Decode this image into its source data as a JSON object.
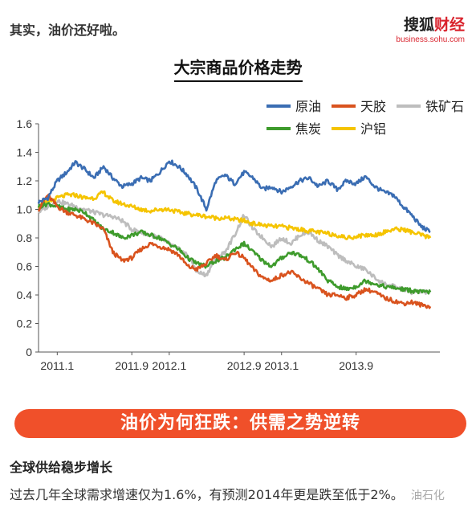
{
  "header": {
    "intro_text": "其实，油价还好啦。",
    "brand_name_a": "搜狐",
    "brand_name_b": "财经",
    "brand_url": "business.sohu.com"
  },
  "chart_data": {
    "type": "line",
    "title": "大宗商品价格走势",
    "xlabel": "",
    "ylabel": "",
    "x_start": "2010-11",
    "x_end": "2014-06",
    "x_ticks": [
      {
        "date": "2011-01",
        "label": "2011.1"
      },
      {
        "date": "2011-09",
        "label": "2011.9"
      },
      {
        "date": "2012-01",
        "label": "2012.1"
      },
      {
        "date": "2012-09",
        "label": "2012.9"
      },
      {
        "date": "2013-01",
        "label": "2013.1"
      },
      {
        "date": "2013-09",
        "label": "2013.9"
      }
    ],
    "ylim": [
      0,
      1.6
    ],
    "y_ticks": [
      0,
      0.2,
      0.4,
      0.6,
      0.8,
      1.0,
      1.2,
      1.4,
      1.6
    ],
    "y_tick_labels": [
      "0",
      "0.2",
      "0.4",
      "0.6",
      "0.8",
      "1.0",
      "1.2",
      "1.4",
      "1.6"
    ],
    "grid": false,
    "legend_position": "top-right",
    "series": [
      {
        "name": "原油",
        "color": "#3a6db3",
        "points": [
          [
            "2010-11-01",
            1.05
          ],
          [
            "2010-12-01",
            1.08
          ],
          [
            "2011-01-01",
            1.2
          ],
          [
            "2011-02-01",
            1.26
          ],
          [
            "2011-03-01",
            1.33
          ],
          [
            "2011-04-01",
            1.28
          ],
          [
            "2011-05-01",
            1.22
          ],
          [
            "2011-06-01",
            1.3
          ],
          [
            "2011-07-01",
            1.22
          ],
          [
            "2011-08-01",
            1.16
          ],
          [
            "2011-09-01",
            1.18
          ],
          [
            "2011-10-01",
            1.22
          ],
          [
            "2011-11-01",
            1.2
          ],
          [
            "2011-12-01",
            1.26
          ],
          [
            "2012-01-01",
            1.34
          ],
          [
            "2012-02-01",
            1.3
          ],
          [
            "2012-03-01",
            1.24
          ],
          [
            "2012-04-01",
            1.14
          ],
          [
            "2012-05-01",
            1.0
          ],
          [
            "2012-06-01",
            1.2
          ],
          [
            "2012-07-01",
            1.24
          ],
          [
            "2012-08-01",
            1.18
          ],
          [
            "2012-09-01",
            1.26
          ],
          [
            "2012-10-01",
            1.22
          ],
          [
            "2012-11-01",
            1.14
          ],
          [
            "2012-12-01",
            1.16
          ],
          [
            "2013-01-01",
            1.12
          ],
          [
            "2013-02-01",
            1.16
          ],
          [
            "2013-03-01",
            1.2
          ],
          [
            "2013-04-01",
            1.22
          ],
          [
            "2013-05-01",
            1.16
          ],
          [
            "2013-06-01",
            1.2
          ],
          [
            "2013-07-01",
            1.14
          ],
          [
            "2013-08-01",
            1.2
          ],
          [
            "2013-09-01",
            1.18
          ],
          [
            "2013-10-01",
            1.23
          ],
          [
            "2013-11-01",
            1.16
          ],
          [
            "2013-12-01",
            1.12
          ],
          [
            "2014-01-01",
            1.1
          ],
          [
            "2014-02-01",
            1.02
          ],
          [
            "2014-03-01",
            0.96
          ],
          [
            "2014-04-01",
            0.88
          ],
          [
            "2014-05-01",
            0.84
          ]
        ]
      },
      {
        "name": "天胶",
        "color": "#d9531e",
        "points": [
          [
            "2010-11-01",
            1.0
          ],
          [
            "2010-12-01",
            1.1
          ],
          [
            "2011-01-01",
            1.02
          ],
          [
            "2011-02-01",
            0.98
          ],
          [
            "2011-03-01",
            0.96
          ],
          [
            "2011-04-01",
            0.93
          ],
          [
            "2011-05-01",
            0.9
          ],
          [
            "2011-06-01",
            0.86
          ],
          [
            "2011-07-01",
            0.7
          ],
          [
            "2011-08-01",
            0.64
          ],
          [
            "2011-09-01",
            0.66
          ],
          [
            "2011-10-01",
            0.72
          ],
          [
            "2011-11-01",
            0.76
          ],
          [
            "2011-12-01",
            0.74
          ],
          [
            "2012-01-01",
            0.72
          ],
          [
            "2012-02-01",
            0.68
          ],
          [
            "2012-03-01",
            0.6
          ],
          [
            "2012-04-01",
            0.58
          ],
          [
            "2012-05-01",
            0.62
          ],
          [
            "2012-06-01",
            0.68
          ],
          [
            "2012-07-01",
            0.64
          ],
          [
            "2012-08-01",
            0.7
          ],
          [
            "2012-09-01",
            0.66
          ],
          [
            "2012-10-01",
            0.58
          ],
          [
            "2012-11-01",
            0.52
          ],
          [
            "2012-12-01",
            0.5
          ],
          [
            "2013-01-01",
            0.54
          ],
          [
            "2013-02-01",
            0.56
          ],
          [
            "2013-03-01",
            0.52
          ],
          [
            "2013-04-01",
            0.48
          ],
          [
            "2013-05-01",
            0.44
          ],
          [
            "2013-06-01",
            0.4
          ],
          [
            "2013-07-01",
            0.4
          ],
          [
            "2013-08-01",
            0.38
          ],
          [
            "2013-09-01",
            0.4
          ],
          [
            "2013-10-01",
            0.44
          ],
          [
            "2013-11-01",
            0.42
          ],
          [
            "2013-12-01",
            0.38
          ],
          [
            "2014-01-01",
            0.36
          ],
          [
            "2014-02-01",
            0.34
          ],
          [
            "2014-03-01",
            0.35
          ],
          [
            "2014-04-01",
            0.33
          ],
          [
            "2014-05-01",
            0.32
          ]
        ]
      },
      {
        "name": "铁矿石",
        "color": "#bdbdbd",
        "points": [
          [
            "2010-11-01",
            0.98
          ],
          [
            "2010-12-01",
            1.02
          ],
          [
            "2011-01-01",
            1.06
          ],
          [
            "2011-02-01",
            1.04
          ],
          [
            "2011-03-01",
            1.02
          ],
          [
            "2011-04-01",
            1.0
          ],
          [
            "2011-05-01",
            0.98
          ],
          [
            "2011-06-01",
            0.96
          ],
          [
            "2011-07-01",
            0.95
          ],
          [
            "2011-08-01",
            0.92
          ],
          [
            "2011-09-01",
            0.86
          ],
          [
            "2011-10-01",
            0.84
          ],
          [
            "2011-11-01",
            0.82
          ],
          [
            "2011-12-01",
            0.8
          ],
          [
            "2012-01-01",
            0.76
          ],
          [
            "2012-02-01",
            0.72
          ],
          [
            "2012-03-01",
            0.68
          ],
          [
            "2012-04-01",
            0.56
          ],
          [
            "2012-05-01",
            0.54
          ],
          [
            "2012-06-01",
            0.66
          ],
          [
            "2012-07-01",
            0.7
          ],
          [
            "2012-08-01",
            0.82
          ],
          [
            "2012-09-01",
            0.96
          ],
          [
            "2012-10-01",
            0.86
          ],
          [
            "2012-11-01",
            0.8
          ],
          [
            "2012-12-01",
            0.74
          ],
          [
            "2013-01-01",
            0.8
          ],
          [
            "2013-02-01",
            0.76
          ],
          [
            "2013-03-01",
            0.82
          ],
          [
            "2013-04-01",
            0.84
          ],
          [
            "2013-05-01",
            0.78
          ],
          [
            "2013-06-01",
            0.74
          ],
          [
            "2013-07-01",
            0.68
          ],
          [
            "2013-08-01",
            0.64
          ],
          [
            "2013-09-01",
            0.6
          ],
          [
            "2013-10-01",
            0.58
          ],
          [
            "2013-11-01",
            0.52
          ],
          [
            "2013-12-01",
            0.48
          ],
          [
            "2014-01-01",
            0.46
          ],
          [
            "2014-02-01",
            0.44
          ],
          [
            "2014-03-01",
            0.42
          ],
          [
            "2014-04-01",
            0.42
          ],
          [
            "2014-05-01",
            0.42
          ]
        ]
      },
      {
        "name": "焦炭",
        "color": "#3e9b2c",
        "points": [
          [
            "2010-11-01",
            1.02
          ],
          [
            "2010-12-01",
            1.04
          ],
          [
            "2011-01-01",
            1.02
          ],
          [
            "2011-02-01",
            1.0
          ],
          [
            "2011-03-01",
            1.0
          ],
          [
            "2011-04-01",
            0.98
          ],
          [
            "2011-05-01",
            0.92
          ],
          [
            "2011-06-01",
            0.86
          ],
          [
            "2011-07-01",
            0.84
          ],
          [
            "2011-08-01",
            0.8
          ],
          [
            "2011-09-01",
            0.82
          ],
          [
            "2011-10-01",
            0.84
          ],
          [
            "2011-11-01",
            0.82
          ],
          [
            "2011-12-01",
            0.8
          ],
          [
            "2012-01-01",
            0.76
          ],
          [
            "2012-02-01",
            0.72
          ],
          [
            "2012-03-01",
            0.66
          ],
          [
            "2012-04-01",
            0.62
          ],
          [
            "2012-05-01",
            0.6
          ],
          [
            "2012-06-01",
            0.64
          ],
          [
            "2012-07-01",
            0.66
          ],
          [
            "2012-08-01",
            0.72
          ],
          [
            "2012-09-01",
            0.76
          ],
          [
            "2012-10-01",
            0.7
          ],
          [
            "2012-11-01",
            0.64
          ],
          [
            "2012-12-01",
            0.6
          ],
          [
            "2013-01-01",
            0.66
          ],
          [
            "2013-02-01",
            0.7
          ],
          [
            "2013-03-01",
            0.68
          ],
          [
            "2013-04-01",
            0.64
          ],
          [
            "2013-05-01",
            0.58
          ],
          [
            "2013-06-01",
            0.5
          ],
          [
            "2013-07-01",
            0.46
          ],
          [
            "2013-08-01",
            0.44
          ],
          [
            "2013-09-01",
            0.46
          ],
          [
            "2013-10-01",
            0.5
          ],
          [
            "2013-11-01",
            0.48
          ],
          [
            "2013-12-01",
            0.46
          ],
          [
            "2014-01-01",
            0.45
          ],
          [
            "2014-02-01",
            0.44
          ],
          [
            "2014-03-01",
            0.43
          ],
          [
            "2014-04-01",
            0.42
          ],
          [
            "2014-05-01",
            0.42
          ]
        ]
      },
      {
        "name": "沪铝",
        "color": "#f5c400",
        "points": [
          [
            "2010-11-01",
            1.02
          ],
          [
            "2010-12-01",
            1.05
          ],
          [
            "2011-01-01",
            1.08
          ],
          [
            "2011-02-01",
            1.1
          ],
          [
            "2011-03-01",
            1.1
          ],
          [
            "2011-04-01",
            1.08
          ],
          [
            "2011-05-01",
            1.08
          ],
          [
            "2011-06-01",
            1.12
          ],
          [
            "2011-07-01",
            1.06
          ],
          [
            "2011-08-01",
            1.04
          ],
          [
            "2011-09-01",
            1.02
          ],
          [
            "2011-10-01",
            1.0
          ],
          [
            "2011-11-01",
            0.99
          ],
          [
            "2011-12-01",
            1.0
          ],
          [
            "2012-01-01",
            1.0
          ],
          [
            "2012-02-01",
            0.98
          ],
          [
            "2012-03-01",
            0.97
          ],
          [
            "2012-04-01",
            0.96
          ],
          [
            "2012-05-01",
            0.95
          ],
          [
            "2012-06-01",
            0.94
          ],
          [
            "2012-07-01",
            0.94
          ],
          [
            "2012-08-01",
            0.93
          ],
          [
            "2012-09-01",
            0.92
          ],
          [
            "2012-10-01",
            0.9
          ],
          [
            "2012-11-01",
            0.89
          ],
          [
            "2012-12-01",
            0.88
          ],
          [
            "2013-01-01",
            0.88
          ],
          [
            "2013-02-01",
            0.87
          ],
          [
            "2013-03-01",
            0.86
          ],
          [
            "2013-04-01",
            0.85
          ],
          [
            "2013-05-01",
            0.84
          ],
          [
            "2013-06-01",
            0.83
          ],
          [
            "2013-07-01",
            0.82
          ],
          [
            "2013-08-01",
            0.8
          ],
          [
            "2013-09-01",
            0.81
          ],
          [
            "2013-10-01",
            0.82
          ],
          [
            "2013-11-01",
            0.82
          ],
          [
            "2013-12-01",
            0.84
          ],
          [
            "2014-01-01",
            0.86
          ],
          [
            "2014-02-01",
            0.86
          ],
          [
            "2014-03-01",
            0.84
          ],
          [
            "2014-04-01",
            0.82
          ],
          [
            "2014-05-01",
            0.8
          ]
        ]
      }
    ]
  },
  "banner": {
    "text": "油价为何狂跌：供需之势逆转"
  },
  "section": {
    "heading": "全球供给稳步增长",
    "body": "过去几年全球需求增速仅为1.6%，有预测2014年更是跌至低于2%。",
    "watermark": "油石化"
  }
}
